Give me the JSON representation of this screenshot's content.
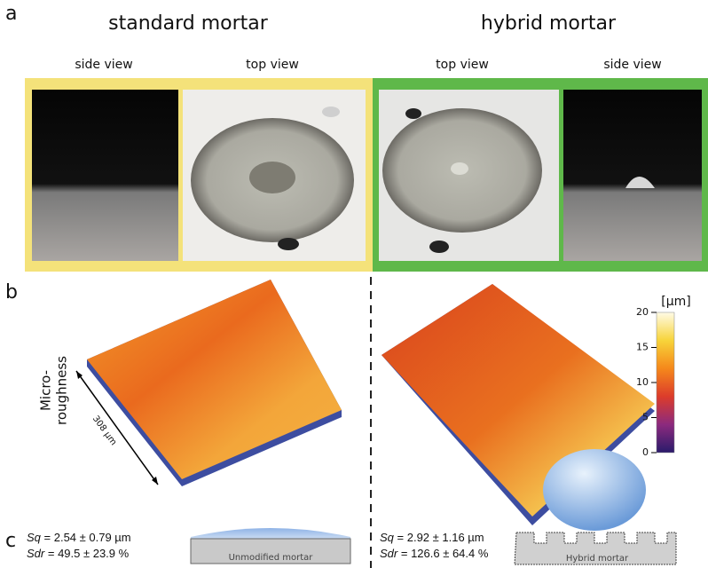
{
  "panel_a": {
    "letter": "a",
    "left_title": "standard mortar",
    "right_title": "hybrid mortar",
    "views": [
      "side view",
      "top view",
      "top view",
      "side view"
    ]
  },
  "panel_b": {
    "letter": "b",
    "axis_label": [
      "Micro-",
      "roughness"
    ],
    "scale_label": "308 µm",
    "colorbar": {
      "label": "[µm]",
      "lim": [
        0,
        20
      ],
      "ticks": [
        0,
        5,
        10,
        15,
        20
      ]
    }
  },
  "panel_c": {
    "letter": "c",
    "left": {
      "sq_symbol": "Sq",
      "sq_value": "= 2.54 ± 0.79 µm",
      "sdr_symbol": "Sdr",
      "sdr_value": "= 49.5 ± 23.9 %",
      "schematic_label": "Unmodified mortar"
    },
    "right": {
      "sq_symbol": "Sq",
      "sq_value": "= 2.92 ± 1.16 µm",
      "sdr_symbol": "Sdr",
      "sdr_value": "= 126.6 ± 64.4 %",
      "schematic_label": "Hybrid mortar"
    }
  }
}
